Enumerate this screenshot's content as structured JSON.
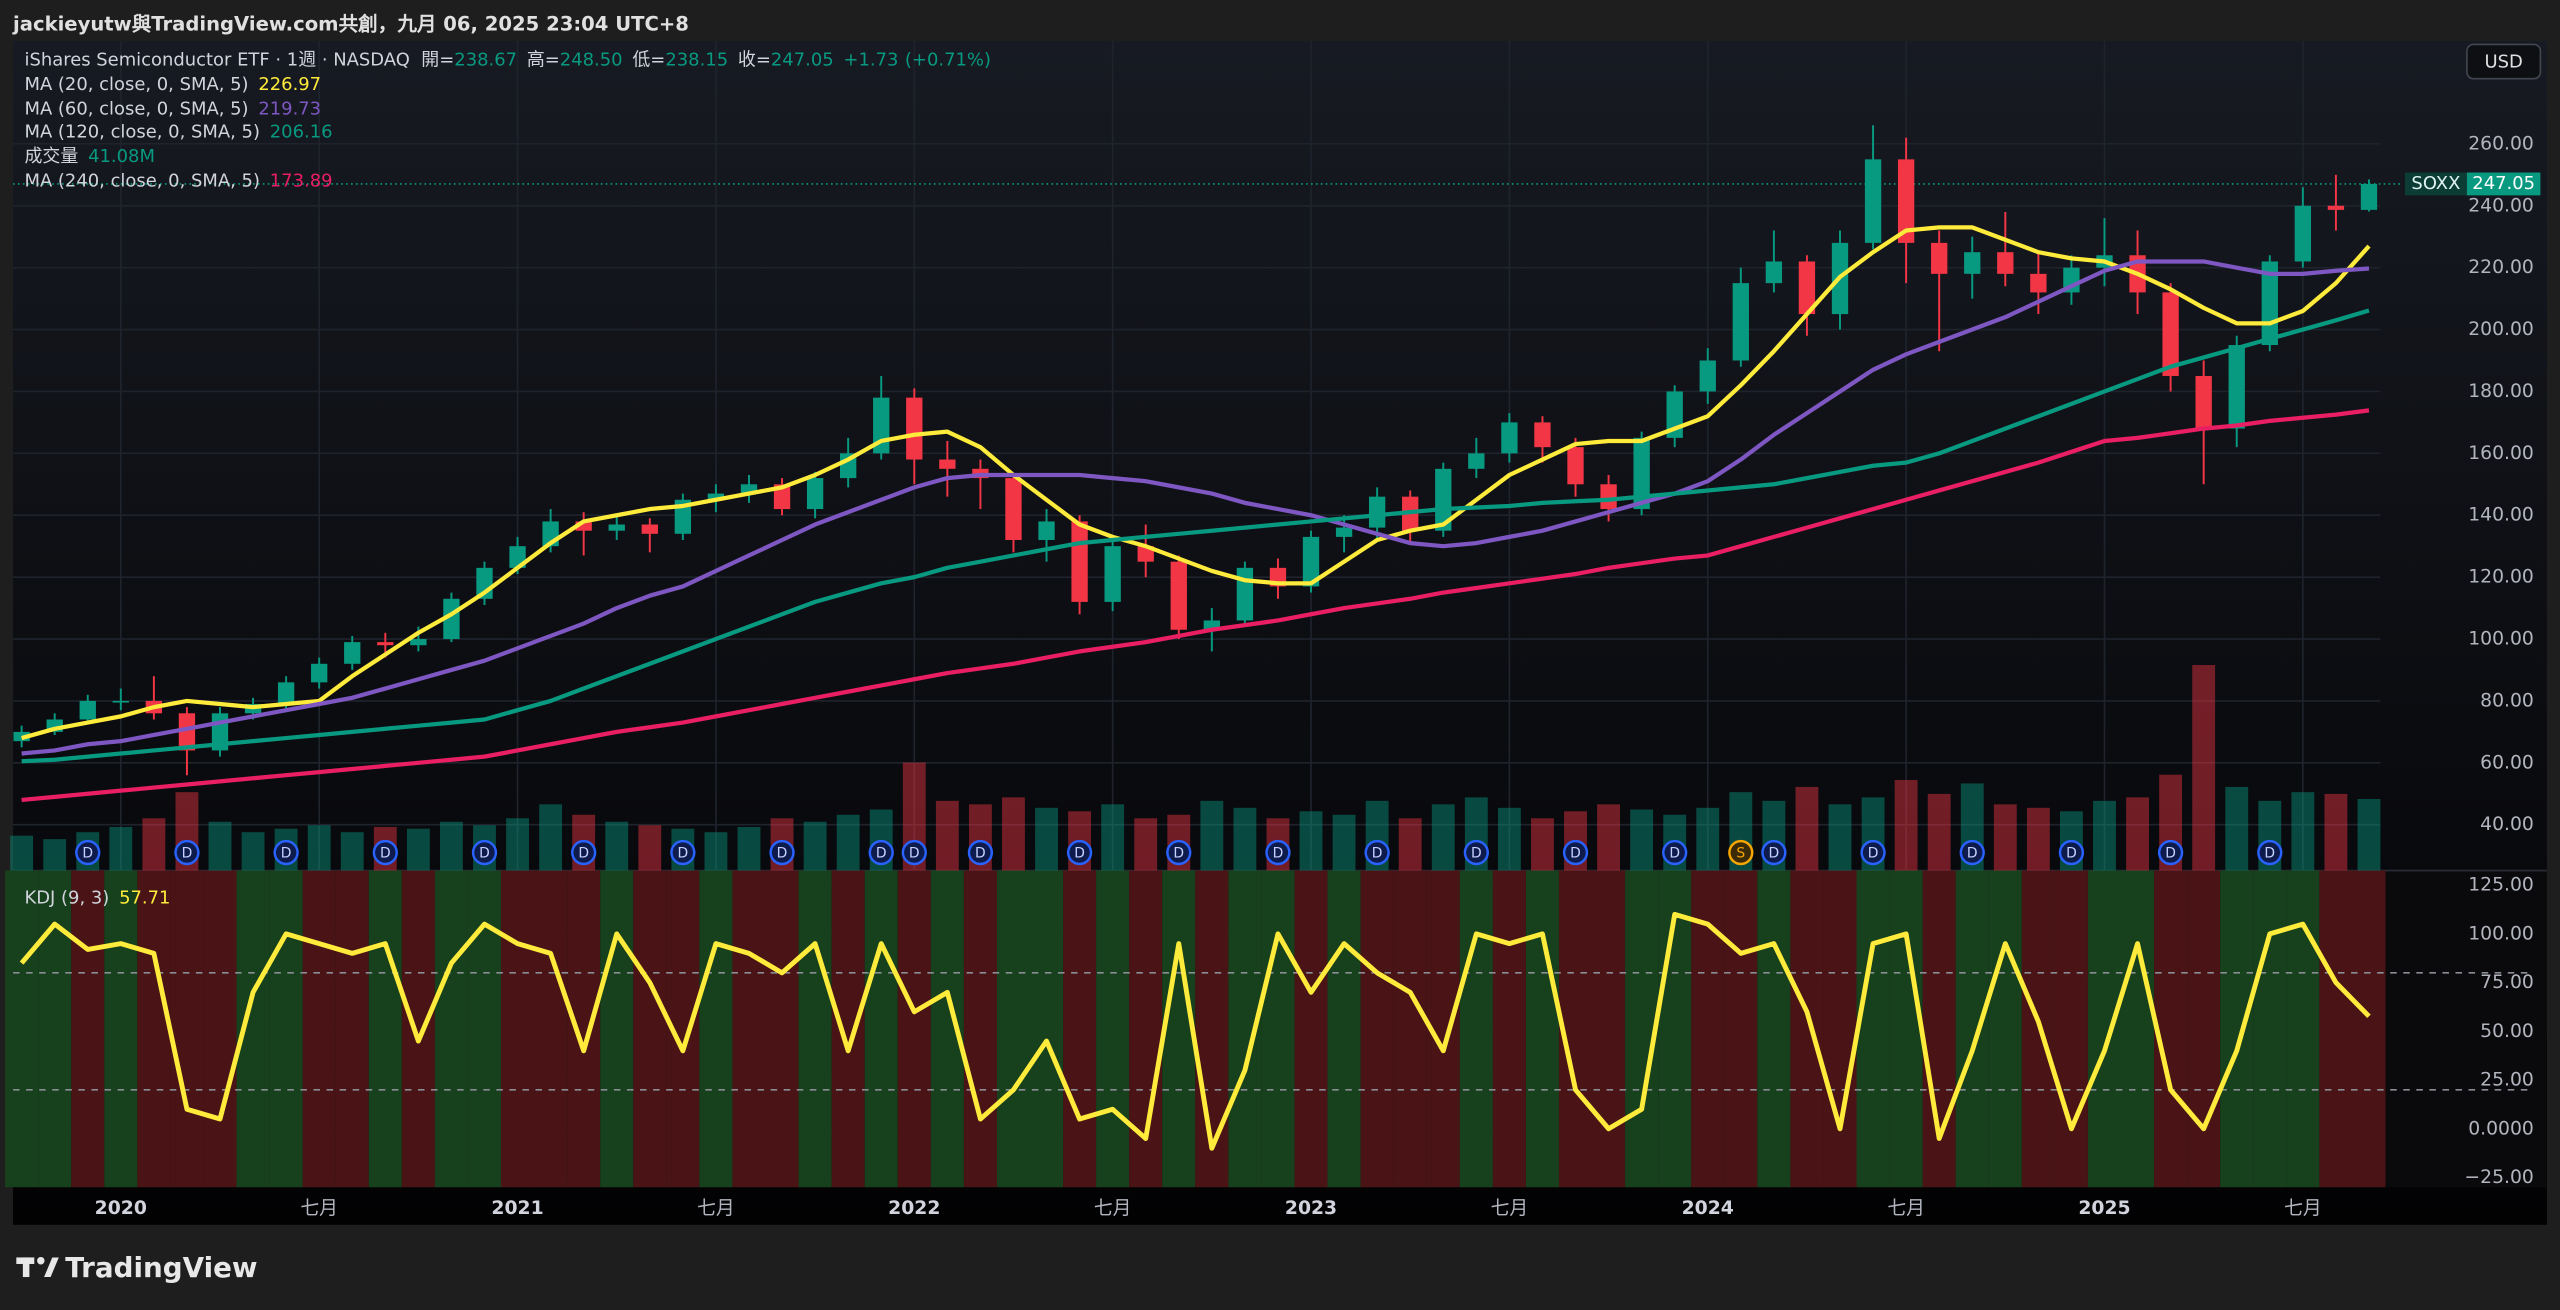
{
  "header": {
    "text": "jackieyutw與TradingView.com共創，九月 06, 2025 23:04 UTC+8"
  },
  "footer": {
    "brand": "TradingView"
  },
  "chart_data": [
    {
      "type": "candlestick",
      "symbol": "SOXX",
      "currency": "USD",
      "legend": {
        "title": "iShares Semiconductor ETF · 1週 · NASDAQ",
        "open_label": "開=",
        "high_label": "高=",
        "low_label": "低=",
        "close_label": "收=",
        "high_text": "248.50",
        "change": 1.73,
        "change_label": "+1.73",
        "change_pct": 0.71,
        "change_pct_label": "(+0.71%)"
      },
      "up_color": "#089981",
      "down_color": "#f23645",
      "grid": true,
      "last_price_line": true,
      "x": [
        "2019-10",
        "2019-11",
        "2019-12",
        "2020-01",
        "2020-02",
        "2020-03",
        "2020-04",
        "2020-05",
        "2020-06",
        "2020-07",
        "2020-08",
        "2020-09",
        "2020-10",
        "2020-11",
        "2020-12",
        "2021-01",
        "2021-02",
        "2021-03",
        "2021-04",
        "2021-05",
        "2021-06",
        "2021-07",
        "2021-08",
        "2021-09",
        "2021-10",
        "2021-11",
        "2021-12",
        "2022-01",
        "2022-02",
        "2022-03",
        "2022-04",
        "2022-05",
        "2022-06",
        "2022-07",
        "2022-08",
        "2022-09",
        "2022-10",
        "2022-11",
        "2022-12",
        "2023-01",
        "2023-02",
        "2023-03",
        "2023-04",
        "2023-05",
        "2023-06",
        "2023-07",
        "2023-08",
        "2023-09",
        "2023-10",
        "2023-11",
        "2023-12",
        "2024-01",
        "2024-02",
        "2024-03",
        "2024-04",
        "2024-05",
        "2024-06",
        "2024-07",
        "2024-08",
        "2024-09",
        "2024-10",
        "2024-11",
        "2024-12",
        "2025-01",
        "2025-02",
        "2025-03",
        "2025-04",
        "2025-05",
        "2025-06",
        "2025-07",
        "2025-08",
        "2025-09"
      ],
      "open": [
        67,
        70,
        74,
        80,
        80,
        76,
        64,
        76,
        79,
        86,
        92,
        99,
        98,
        100,
        113,
        123,
        130,
        138,
        135,
        137,
        134,
        145,
        147,
        150,
        142,
        152,
        160,
        178,
        158,
        155,
        152,
        132,
        138,
        112,
        130,
        125,
        103,
        106,
        123,
        117,
        133,
        136,
        146,
        135,
        155,
        160,
        170,
        162,
        150,
        142,
        165,
        180,
        190,
        215,
        222,
        205,
        228,
        255,
        228,
        218,
        225,
        218,
        212,
        220,
        224,
        212,
        185,
        168,
        195,
        222,
        240,
        238.67
      ],
      "high": [
        72,
        76,
        82,
        84,
        88,
        78,
        78,
        81,
        88,
        94,
        101,
        102,
        104,
        115,
        125,
        133,
        142,
        141,
        140,
        139,
        147,
        150,
        153,
        152,
        154,
        165,
        185,
        181,
        164,
        158,
        153,
        142,
        140,
        133,
        137,
        127,
        110,
        125,
        126,
        135,
        140,
        149,
        148,
        157,
        165,
        173,
        172,
        165,
        153,
        167,
        182,
        194,
        220,
        232,
        224,
        232,
        266,
        262,
        232,
        230,
        238,
        225,
        224,
        236,
        232,
        215,
        190,
        198,
        224,
        246,
        250,
        248.5
      ],
      "low": [
        65,
        69,
        73,
        77,
        74,
        56,
        62,
        74,
        77,
        84,
        90,
        94,
        96,
        99,
        111,
        121,
        128,
        127,
        132,
        128,
        132,
        141,
        144,
        140,
        139,
        149,
        158,
        150,
        146,
        142,
        128,
        125,
        108,
        109,
        120,
        100,
        96,
        104,
        113,
        115,
        128,
        132,
        131,
        133,
        152,
        157,
        157,
        146,
        138,
        140,
        162,
        176,
        188,
        212,
        198,
        200,
        226,
        215,
        193,
        210,
        214,
        205,
        208,
        214,
        205,
        180,
        150,
        162,
        193,
        220,
        232,
        238.15
      ],
      "close": [
        70,
        74,
        80,
        80,
        76,
        64,
        76,
        79,
        86,
        92,
        99,
        98,
        100,
        113,
        123,
        130,
        138,
        135,
        137,
        134,
        145,
        147,
        150,
        142,
        152,
        160,
        178,
        158,
        155,
        152,
        132,
        138,
        112,
        130,
        125,
        103,
        106,
        123,
        117,
        133,
        136,
        146,
        135,
        155,
        160,
        170,
        162,
        150,
        142,
        165,
        180,
        190,
        215,
        222,
        205,
        228,
        255,
        228,
        218,
        225,
        218,
        212,
        220,
        224,
        212,
        185,
        168,
        195,
        222,
        240,
        238.67,
        247.05
      ],
      "overlays": [
        {
          "name": "MA (20, close, 0, SMA, 5)",
          "color": "#ffeb3b",
          "values": [
            68,
            71,
            73,
            75,
            78,
            80,
            79,
            78,
            79,
            80,
            88,
            95,
            102,
            108,
            115,
            123,
            131,
            138,
            140,
            142,
            143,
            145,
            147,
            149,
            153,
            158,
            164,
            166,
            167,
            162,
            153,
            145,
            137,
            133,
            130,
            126,
            122,
            119,
            118,
            118,
            125,
            132,
            135,
            137,
            145,
            153,
            158,
            163,
            164,
            164,
            168,
            172,
            182,
            193,
            205,
            217,
            225,
            232,
            233,
            233,
            229,
            225,
            223,
            222,
            218,
            213,
            207,
            202,
            202,
            206,
            215,
            226.97
          ]
        },
        {
          "name": "MA (60, close, 0, SMA, 5)",
          "color": "#7e57c2",
          "values": [
            63,
            64,
            66,
            67,
            69,
            71,
            73,
            75,
            77,
            79,
            81,
            84,
            87,
            90,
            93,
            97,
            101,
            105,
            110,
            114,
            117,
            122,
            127,
            132,
            137,
            141,
            145,
            149,
            152,
            153,
            153,
            153,
            153,
            152,
            151,
            149,
            147,
            144,
            142,
            140,
            137,
            134,
            131,
            130,
            131,
            133,
            135,
            138,
            141,
            144,
            147,
            151,
            158,
            166,
            173,
            180,
            187,
            192,
            196,
            200,
            204,
            209,
            214,
            219,
            222,
            222,
            222,
            220,
            218,
            218,
            219,
            219.73
          ]
        },
        {
          "name": "MA (120, close, 0, SMA, 5)",
          "color": "#089981",
          "values": [
            60.5,
            61,
            62,
            63,
            64,
            65,
            66,
            67,
            68,
            69,
            70,
            71,
            72,
            73,
            74,
            77,
            80,
            84,
            88,
            92,
            96,
            100,
            104,
            108,
            112,
            115,
            118,
            120,
            123,
            125,
            127,
            129,
            131,
            132,
            133,
            134,
            135,
            136,
            137,
            138,
            139,
            140,
            141,
            142,
            142.5,
            143,
            144,
            144.5,
            145,
            146,
            147,
            148,
            149,
            150,
            152,
            154,
            156,
            157,
            160,
            164,
            168,
            172,
            176,
            180,
            184,
            188,
            191,
            194,
            197,
            200,
            203,
            206.16
          ]
        },
        {
          "name": "MA (240, close, 0, SMA, 5)",
          "color": "#e91e63",
          "values": [
            48,
            49,
            50,
            51,
            52,
            53,
            54,
            55,
            56,
            57,
            58,
            59,
            60,
            61,
            62,
            64,
            66,
            68,
            70,
            71.5,
            73,
            75,
            77,
            79,
            81,
            83,
            85,
            87,
            89,
            90.5,
            92,
            94,
            96,
            97.5,
            99,
            101,
            103,
            104.5,
            106,
            108,
            110,
            111.5,
            113,
            115,
            116.5,
            118,
            119.5,
            121,
            123,
            124.5,
            126,
            127,
            130,
            133,
            136,
            139,
            142,
            145,
            148,
            151,
            154,
            157,
            160.5,
            164,
            165,
            166.5,
            168,
            169,
            170.5,
            171.5,
            172.5,
            173.89
          ]
        }
      ],
      "volume": {
        "name": "成交量",
        "legend_label": "41.08M",
        "vlim": [
          0,
          120
        ],
        "values": [
          20,
          18,
          22,
          25,
          30,
          45,
          28,
          22,
          24,
          26,
          22,
          25,
          24,
          28,
          26,
          30,
          38,
          32,
          28,
          26,
          24,
          22,
          25,
          30,
          28,
          32,
          35,
          62,
          40,
          38,
          42,
          36,
          34,
          38,
          30,
          32,
          40,
          36,
          30,
          34,
          32,
          40,
          30,
          38,
          42,
          36,
          30,
          34,
          38,
          35,
          32,
          36,
          45,
          40,
          48,
          38,
          42,
          52,
          44,
          50,
          38,
          36,
          34,
          40,
          42,
          55,
          118,
          48,
          40,
          45,
          44,
          41.08
        ]
      },
      "events": [
        {
          "x": "2019-12",
          "label": "D"
        },
        {
          "x": "2020-03",
          "label": "D"
        },
        {
          "x": "2020-06",
          "label": "D"
        },
        {
          "x": "2020-09",
          "label": "D"
        },
        {
          "x": "2020-12",
          "label": "D"
        },
        {
          "x": "2021-03",
          "label": "D"
        },
        {
          "x": "2021-06",
          "label": "D"
        },
        {
          "x": "2021-09",
          "label": "D"
        },
        {
          "x": "2021-12",
          "label": "D"
        },
        {
          "x": "2022-01",
          "label": "D"
        },
        {
          "x": "2022-03",
          "label": "D"
        },
        {
          "x": "2022-06",
          "label": "D"
        },
        {
          "x": "2022-09",
          "label": "D"
        },
        {
          "x": "2022-12",
          "label": "D"
        },
        {
          "x": "2023-03",
          "label": "D"
        },
        {
          "x": "2023-06",
          "label": "D"
        },
        {
          "x": "2023-09",
          "label": "D"
        },
        {
          "x": "2023-12",
          "label": "D"
        },
        {
          "x": "2024-02",
          "label": "S"
        },
        {
          "x": "2024-03",
          "label": "D"
        },
        {
          "x": "2024-06",
          "label": "D"
        },
        {
          "x": "2024-09",
          "label": "D"
        },
        {
          "x": "2024-12",
          "label": "D"
        },
        {
          "x": "2025-03",
          "label": "D"
        },
        {
          "x": "2025-06",
          "label": "D"
        }
      ],
      "ylim": [
        25.2,
        293.2
      ],
      "yticks": [
        {
          "value": 40,
          "label": "40.00"
        },
        {
          "value": 60,
          "label": "60.00"
        },
        {
          "value": 80,
          "label": "80.00"
        },
        {
          "value": 100,
          "label": "100.00"
        },
        {
          "value": 120,
          "label": "120.00"
        },
        {
          "value": 140,
          "label": "140.00"
        },
        {
          "value": 160,
          "label": "160.00"
        },
        {
          "value": 180,
          "label": "180.00"
        },
        {
          "value": 200,
          "label": "200.00"
        },
        {
          "value": 220,
          "label": "220.00"
        },
        {
          "value": 240,
          "label": "240.00"
        },
        {
          "value": 260,
          "label": "260.00"
        }
      ],
      "xticks": [
        {
          "value": "2020-01",
          "label": "2020"
        },
        {
          "value": "2020-07",
          "label": "七月"
        },
        {
          "value": "2021-01",
          "label": "2021"
        },
        {
          "value": "2021-07",
          "label": "七月"
        },
        {
          "value": "2022-01",
          "label": "2022"
        },
        {
          "value": "2022-07",
          "label": "七月"
        },
        {
          "value": "2023-01",
          "label": "2023"
        },
        {
          "value": "2023-07",
          "label": "七月"
        },
        {
          "value": "2024-01",
          "label": "2024"
        },
        {
          "value": "2024-07",
          "label": "七月"
        },
        {
          "value": "2025-01",
          "label": "2025"
        },
        {
          "value": "2025-07",
          "label": "七月"
        }
      ]
    },
    {
      "type": "line",
      "name": "KDJ (9, 3)",
      "color": "#ffeb3b",
      "up_zone": "#17411c",
      "down_zone": "#4a1416",
      "values": [
        85,
        105,
        92,
        95,
        90,
        10,
        5,
        70,
        100,
        95,
        90,
        95,
        45,
        85,
        105,
        95,
        90,
        40,
        100,
        75,
        40,
        95,
        90,
        80,
        95,
        40,
        95,
        60,
        70,
        5,
        20,
        45,
        5,
        10,
        -5,
        95,
        -10,
        30,
        100,
        70,
        95,
        80,
        70,
        40,
        100,
        95,
        100,
        20,
        0,
        10,
        110,
        105,
        90,
        95,
        60,
        0,
        95,
        100,
        -5,
        40,
        95,
        55,
        0,
        40,
        95,
        20,
        0,
        40,
        100,
        105,
        75,
        57.71
      ],
      "levels": [
        80,
        20
      ],
      "ylim": [
        -30,
        132.5
      ],
      "yticks": [
        {
          "value": 125,
          "label": "125.00"
        },
        {
          "value": 100,
          "label": "100.00"
        },
        {
          "value": 75,
          "label": "75.00"
        },
        {
          "value": 50,
          "label": "50.00"
        },
        {
          "value": 25,
          "label": "25.00"
        },
        {
          "value": 0,
          "label": "0.0000"
        },
        {
          "value": -25,
          "label": "−25.00"
        }
      ]
    }
  ]
}
